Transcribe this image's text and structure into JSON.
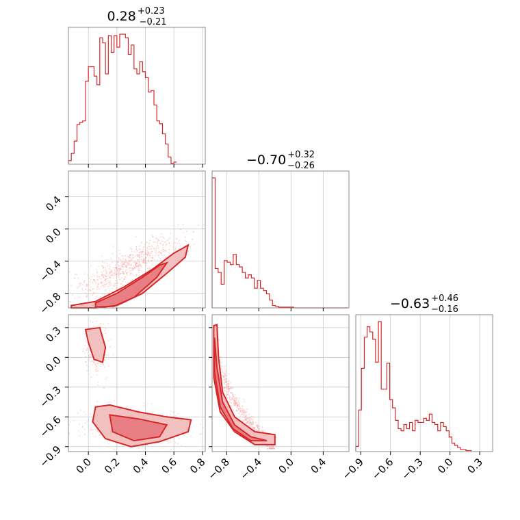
{
  "chart_data": {
    "type": "corner",
    "color": "#d62728",
    "titles": [
      {
        "median": "0.28",
        "upper": "+0.23",
        "lower": "−0.21"
      },
      {
        "median": "−0.70",
        "upper": "+0.32",
        "lower": "−0.26"
      },
      {
        "median": "−0.63",
        "upper": "+0.46",
        "lower": "−0.16"
      }
    ],
    "params": [
      {
        "range": [
          -0.14,
          0.82
        ],
        "ticks": [
          "0.0",
          "0.2",
          "0.4",
          "0.6",
          "0.8"
        ],
        "tick_values": [
          0.0,
          0.2,
          0.4,
          0.6,
          0.8
        ]
      },
      {
        "range": [
          -0.98,
          0.72
        ],
        "ticks": [
          "−0.8",
          "−0.4",
          "0.0",
          "0.4"
        ],
        "tick_values": [
          -0.8,
          -0.4,
          0.0,
          0.4
        ]
      },
      {
        "range": [
          -0.95,
          0.43
        ],
        "ticks": [
          "−0.9",
          "−0.6",
          "−0.3",
          "0.0",
          "0.3"
        ],
        "tick_values": [
          -0.9,
          -0.6,
          -0.3,
          0.0,
          0.3
        ]
      }
    ],
    "hist1": {
      "bin_width": 0.02,
      "start": -0.14,
      "counts": [
        5,
        15,
        32,
        55,
        58,
        60,
        115,
        135,
        135,
        122,
        110,
        175,
        168,
        125,
        178,
        155,
        178,
        162,
        180,
        180,
        175,
        152,
        165,
        132,
        125,
        142,
        128,
        120,
        100,
        102,
        82,
        60,
        56,
        42,
        28,
        10,
        1,
        3
      ]
    },
    "hist2": {
      "bin_width": 0.0375,
      "start": -0.98,
      "counts": [
        165,
        50,
        45,
        30,
        60,
        58,
        55,
        68,
        55,
        52,
        45,
        38,
        42,
        38,
        25,
        35,
        25,
        22,
        18,
        10,
        3,
        2,
        1,
        1,
        1,
        1,
        1,
        0,
        0,
        0,
        0,
        0,
        0,
        0,
        0,
        0,
        0,
        0,
        0,
        0,
        0,
        0,
        0,
        0,
        0
      ]
    },
    "hist3": {
      "bin_width": 0.0285,
      "start": -0.95,
      "counts": [
        5,
        40,
        80,
        110,
        120,
        115,
        108,
        86,
        125,
        60,
        60,
        85,
        50,
        42,
        30,
        22,
        20,
        26,
        22,
        28,
        20,
        30,
        28,
        28,
        32,
        30,
        36,
        28,
        26,
        20,
        28,
        24,
        20,
        14,
        8,
        6,
        4,
        2,
        2,
        1,
        1
      ]
    }
  }
}
